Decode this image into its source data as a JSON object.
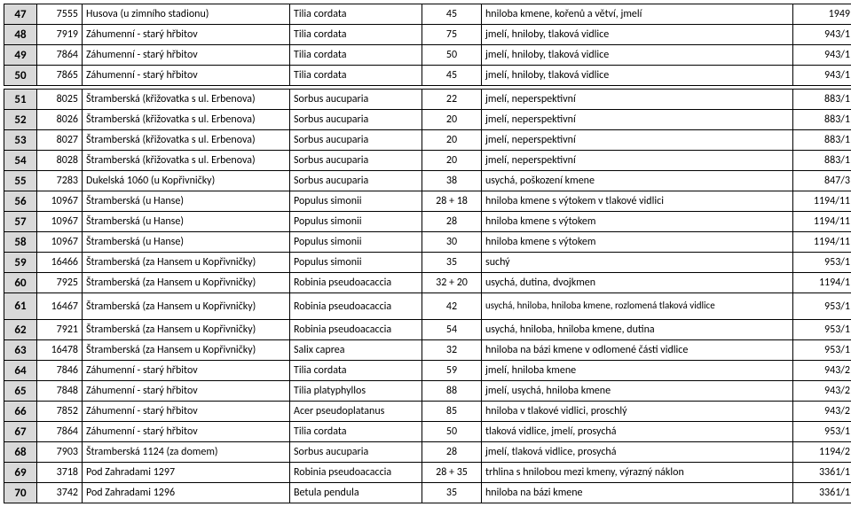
{
  "rows": [
    {
      "idx": "47",
      "id": "7555",
      "loc": "Husova (u zimního stadionu)",
      "spec": "Tilia cordata",
      "val": "45",
      "note": "hniloba kmene, kořenů a větví, jmelí",
      "code": "1949"
    },
    {
      "idx": "48",
      "id": "7919",
      "loc": "Záhumenní - starý hřbitov",
      "spec": "Tilia cordata",
      "val": "75",
      "note": "jmelí, hniloby, tlaková vidlice",
      "code": "943/1"
    },
    {
      "idx": "49",
      "id": "7864",
      "loc": "Záhumenní - starý hřbitov",
      "spec": "Tilia cordata",
      "val": "50",
      "note": "jmelí, hniloby, tlaková vidlice",
      "code": "943/1"
    },
    {
      "idx": "50",
      "id": "7865",
      "loc": "Záhumenní - starý hřbitov",
      "spec": "Tilia cordata",
      "val": "45",
      "note": "jmelí, hniloby, tlaková vidlice",
      "code": "943/1"
    },
    {
      "idx": "51",
      "id": "8025",
      "loc": "Štramberská (křižovatka s ul. Erbenova)",
      "spec": "Sorbus aucuparia",
      "val": "22",
      "note": "jmelí, neperspektivní",
      "code": "883/1"
    },
    {
      "idx": "52",
      "id": "8026",
      "loc": "Štramberská (křižovatka s ul. Erbenova)",
      "spec": "Sorbus aucuparia",
      "val": "20",
      "note": "jmelí, neperspektivní",
      "code": "883/1"
    },
    {
      "idx": "53",
      "id": "8027",
      "loc": "Štramberská (křižovatka s ul. Erbenova)",
      "spec": "Sorbus aucuparia",
      "val": "20",
      "note": "jmelí, neperspektivní",
      "code": "883/1"
    },
    {
      "idx": "54",
      "id": "8028",
      "loc": "Štramberská (křižovatka s ul. Erbenova)",
      "spec": "Sorbus aucuparia",
      "val": "20",
      "note": "jmelí, neperspektivní",
      "code": "883/1"
    },
    {
      "idx": "55",
      "id": "7283",
      "loc": "Dukelská 1060 (u Kopřivničky)",
      "spec": "Sorbus aucuparia",
      "val": "38",
      "note": "usychá, poškození kmene",
      "code": "847/3"
    },
    {
      "idx": "56",
      "id": "10967",
      "loc": "Štramberská (u Hanse)",
      "spec": "Populus simonii",
      "val": "28 + 18",
      "note": "hniloba kmene s výtokem v tlakové vidlici",
      "code": "1194/11"
    },
    {
      "idx": "57",
      "id": "10967",
      "loc": "Štramberská (u Hanse)",
      "spec": "Populus simonii",
      "val": "28",
      "note": "hniloba kmene s výtokem",
      "code": "1194/11"
    },
    {
      "idx": "58",
      "id": "10967",
      "loc": "Štramberská (u Hanse)",
      "spec": "Populus simonii",
      "val": "30",
      "note": "hniloba kmene s výtokem",
      "code": "1194/11"
    },
    {
      "idx": "59",
      "id": "16466",
      "loc": "Štramberská (za Hansem u Kopřivničky)",
      "spec": "Populus simonii",
      "val": "35",
      "note": "suchý",
      "code": "953/1"
    },
    {
      "idx": "60",
      "id": "7925",
      "loc": "Štramberská (za Hansem u Kopřivničky)",
      "spec": "Robinia pseudoacaccia",
      "val": "32 + 20",
      "note": "usychá, dutina, dvojkmen",
      "code": "1194/1"
    },
    {
      "idx": "61",
      "id": "16467",
      "loc": "Štramberská (za Hansem u Kopřivničky)",
      "spec": "Robinia pseudoacaccia",
      "val": "42",
      "note": "usychá, hniloba, hniloba kmene, rozlomená tlaková vidlice",
      "code": "953/1",
      "tall": true
    },
    {
      "idx": "62",
      "id": "7921",
      "loc": "Štramberská (za Hansem u Kopřivničky)",
      "spec": "Robinia pseudoacaccia",
      "val": "54",
      "note": "usychá, hniloba, hniloba kmene, dutina",
      "code": "953/1"
    },
    {
      "idx": "63",
      "id": "16478",
      "loc": "Štramberská (za Hansem u Kopřivničky)",
      "spec": "Salix caprea",
      "val": "32",
      "note": "hniloba na bázi kmene v odlomené části vidlice",
      "code": "953/1"
    },
    {
      "idx": "64",
      "id": "7846",
      "loc": "Záhumenní - starý hřbitov",
      "spec": "Tilia cordata",
      "val": "59",
      "note": "jmelí, hniloba kmene",
      "code": "943/2"
    },
    {
      "idx": "65",
      "id": "7848",
      "loc": "Záhumenní - starý hřbitov",
      "spec": "Tilia platyphyllos",
      "val": "88",
      "note": "jmelí, usychá, hniloba kmene",
      "code": "943/2"
    },
    {
      "idx": "66",
      "id": "7852",
      "loc": "Záhumenní - starý hřbitov",
      "spec": "Acer pseudoplatanus",
      "val": "85",
      "note": "hniloba v tlakové vidlici, proschlý",
      "code": "943/2"
    },
    {
      "idx": "67",
      "id": "7864",
      "loc": "Záhumenní - starý hřbitov",
      "spec": "Tilia cordata",
      "val": "50",
      "note": "tlaková vidlice, jmelí, prosychá",
      "code": "953/1"
    },
    {
      "idx": "68",
      "id": "7903",
      "loc": "Štramberská 1124 (za domem)",
      "spec": "Sorbus aucuparia",
      "val": "28",
      "note": "jmelí, tlaková vidlice, prosychá",
      "code": "1194/2"
    },
    {
      "idx": "69",
      "id": "3718",
      "loc": "Pod Zahradami 1297",
      "spec": "Robinia pseudoacaccia",
      "val": "28 + 35",
      "note": "trhlina s hnilobou mezi kmeny, výrazný náklon",
      "code": "3361/1"
    },
    {
      "idx": "70",
      "id": "3742",
      "loc": "Pod Zahradami 1296",
      "spec": "Betula pendula",
      "val": "35",
      "note": "hniloba na bázi kmene",
      "code": "3361/1"
    }
  ],
  "gapAfter": "50"
}
